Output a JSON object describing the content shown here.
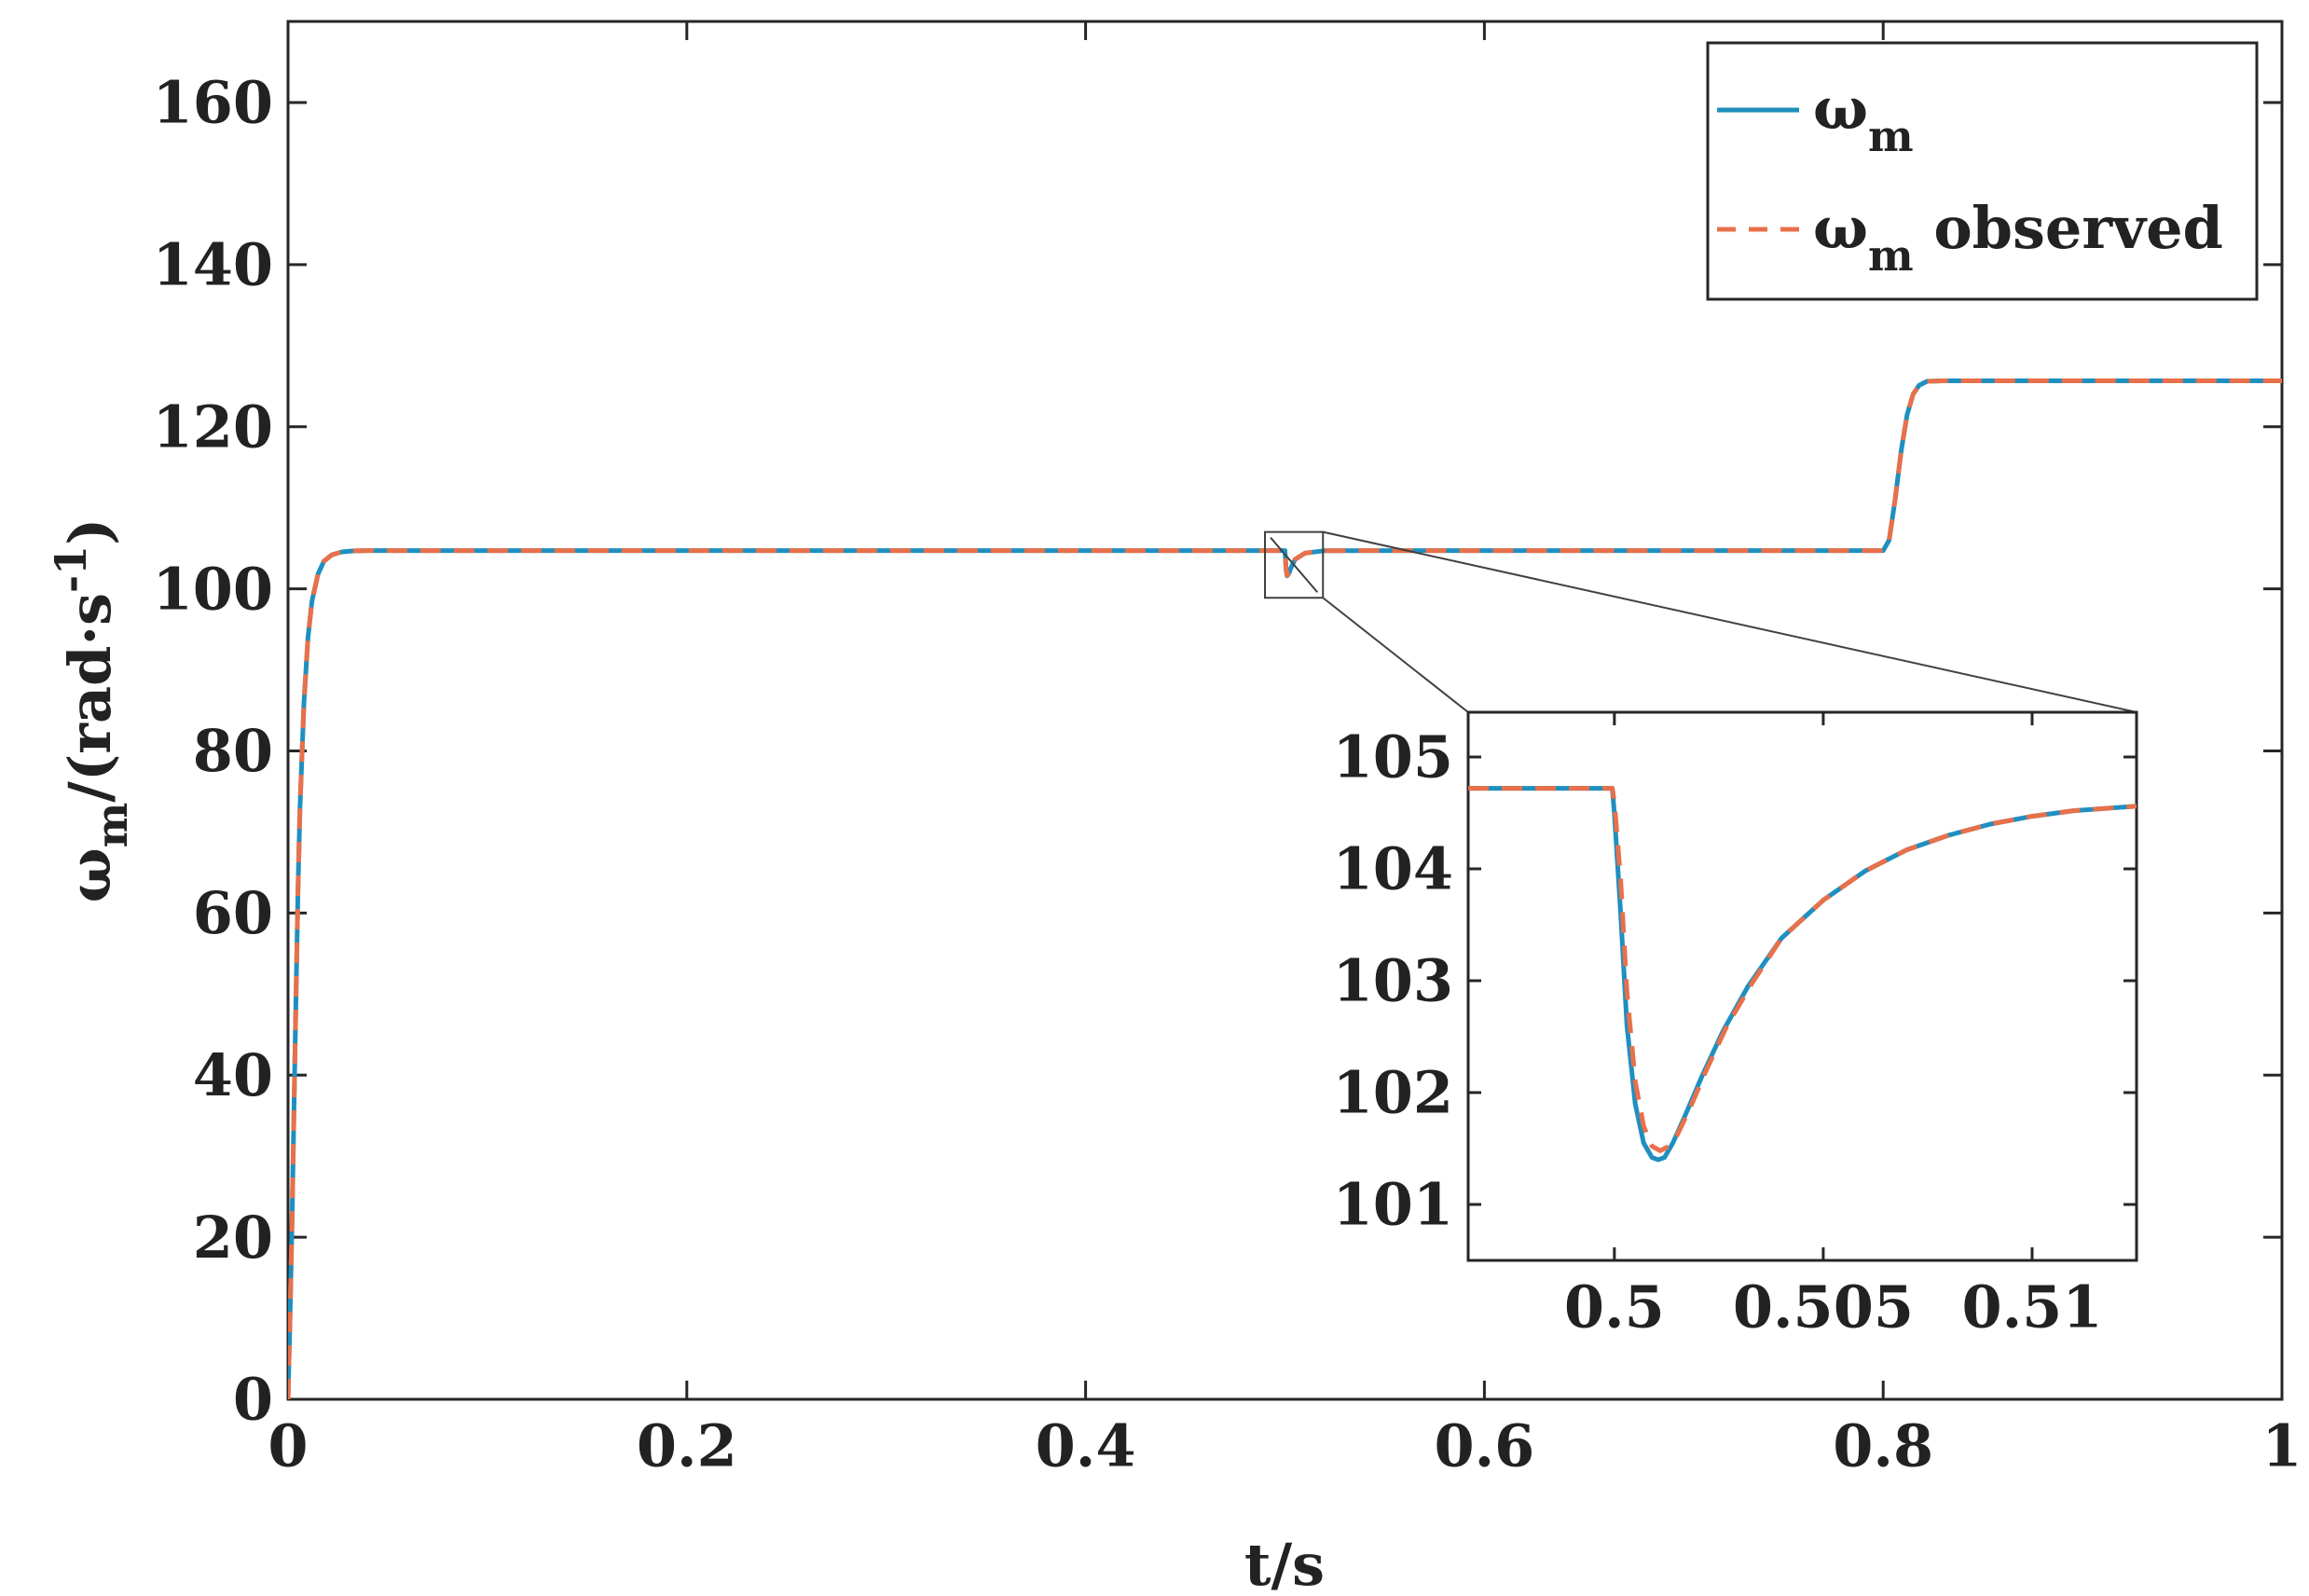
{
  "chart_data": [
    {
      "type": "line",
      "title": "",
      "xlabel": "t/s",
      "ylabel": {
        "symbol": "ω",
        "sub": "m",
        "unit_main": "/(rad·s",
        "unit_sup": "-1",
        "unit_close": ")"
      },
      "xlim": [
        0,
        1
      ],
      "ylim": [
        0,
        170
      ],
      "xticks": [
        0,
        0.2,
        0.4,
        0.6,
        0.8,
        1
      ],
      "xtick_labels": [
        "0",
        "0.2",
        "0.4",
        "0.6",
        "0.8",
        "1"
      ],
      "yticks": [
        0,
        20,
        40,
        60,
        80,
        100,
        120,
        140,
        160
      ],
      "ytick_labels": [
        "0",
        "20",
        "40",
        "60",
        "80",
        "100",
        "120",
        "140",
        "160"
      ],
      "grid": false,
      "legend": {
        "placement": "top-right"
      },
      "series": [
        {
          "name": {
            "symbol": "ω",
            "sub": "m",
            "suffix": ""
          },
          "color": "#1f8fbf",
          "style": "solid",
          "x": [
            0,
            0.001,
            0.002,
            0.003,
            0.004,
            0.005,
            0.006,
            0.008,
            0.01,
            0.012,
            0.015,
            0.018,
            0.022,
            0.027,
            0.033,
            0.04,
            0.05,
            0.1,
            0.2,
            0.3,
            0.4,
            0.499,
            0.5,
            0.5005,
            0.501,
            0.502,
            0.503,
            0.505,
            0.51,
            0.52,
            0.6,
            0.7,
            0.799,
            0.8,
            0.803,
            0.806,
            0.809,
            0.812,
            0.815,
            0.818,
            0.822,
            0.83,
            0.85,
            0.9,
            1.0
          ],
          "y": [
            0,
            10,
            22,
            36,
            50,
            63,
            73,
            86,
            94,
            98.5,
            101.8,
            103.4,
            104.2,
            104.55,
            104.68,
            104.72,
            104.72,
            104.72,
            104.72,
            104.72,
            104.72,
            104.72,
            104.72,
            102.5,
            101.6,
            101.9,
            102.6,
            103.6,
            104.4,
            104.7,
            104.72,
            104.72,
            104.72,
            104.72,
            106,
            111,
            117,
            121.5,
            124,
            125.1,
            125.6,
            125.66,
            125.66,
            125.66,
            125.66
          ]
        },
        {
          "name": {
            "symbol": "ω",
            "sub": "m",
            "suffix": " observed"
          },
          "color": "#e8704a",
          "style": "dashed",
          "x": [
            0,
            0.001,
            0.002,
            0.003,
            0.004,
            0.005,
            0.006,
            0.008,
            0.01,
            0.012,
            0.015,
            0.018,
            0.022,
            0.027,
            0.033,
            0.04,
            0.05,
            0.1,
            0.2,
            0.3,
            0.4,
            0.499,
            0.5,
            0.5005,
            0.501,
            0.502,
            0.503,
            0.505,
            0.51,
            0.52,
            0.6,
            0.7,
            0.799,
            0.8,
            0.803,
            0.806,
            0.809,
            0.812,
            0.815,
            0.818,
            0.822,
            0.83,
            0.85,
            0.9,
            1.0
          ],
          "y": [
            0,
            10,
            22,
            36,
            50,
            63,
            73,
            86,
            94,
            98.5,
            101.8,
            103.4,
            104.2,
            104.55,
            104.68,
            104.72,
            104.72,
            104.72,
            104.72,
            104.72,
            104.72,
            104.72,
            104.72,
            102.6,
            101.65,
            101.95,
            102.65,
            103.62,
            104.4,
            104.7,
            104.72,
            104.72,
            104.72,
            104.72,
            106,
            111,
            117,
            121.5,
            124,
            125.1,
            125.6,
            125.66,
            125.66,
            125.66,
            125.66
          ]
        }
      ]
    },
    {
      "type": "line",
      "title": "",
      "xlabel": "",
      "ylabel": "",
      "xlim": [
        0.4965,
        0.5125
      ],
      "ylim": [
        100.5,
        105.4
      ],
      "xticks": [
        0.5,
        0.505,
        0.51
      ],
      "xtick_labels": [
        "0.5",
        "0.505",
        "0.51"
      ],
      "yticks": [
        101,
        102,
        103,
        104,
        105
      ],
      "ytick_labels": [
        "101",
        "102",
        "103",
        "104",
        "105"
      ],
      "grid": false,
      "series": [
        {
          "name": "",
          "color": "#1f8fbf",
          "style": "solid",
          "x": [
            0.4965,
            0.49995,
            0.5,
            0.50015,
            0.5003,
            0.5005,
            0.5007,
            0.5009,
            0.50105,
            0.5012,
            0.5014,
            0.5017,
            0.5021,
            0.5026,
            0.5032,
            0.504,
            0.505,
            0.506,
            0.507,
            0.508,
            0.509,
            0.51,
            0.511,
            0.5125
          ],
          "y": [
            104.72,
            104.72,
            104.5,
            103.6,
            102.6,
            101.9,
            101.55,
            101.42,
            101.4,
            101.42,
            101.55,
            101.8,
            102.15,
            102.55,
            102.95,
            103.38,
            103.72,
            103.98,
            104.17,
            104.3,
            104.4,
            104.47,
            104.52,
            104.56
          ]
        },
        {
          "name": "",
          "color": "#e8704a",
          "style": "dashed",
          "x": [
            0.4965,
            0.49995,
            0.5,
            0.50015,
            0.5003,
            0.5005,
            0.5007,
            0.5009,
            0.5011,
            0.5013,
            0.5015,
            0.5018,
            0.5022,
            0.5027,
            0.5033,
            0.504,
            0.505,
            0.506,
            0.507,
            0.508,
            0.509,
            0.51,
            0.511,
            0.5125
          ],
          "y": [
            104.72,
            104.72,
            104.6,
            103.9,
            102.9,
            102.1,
            101.7,
            101.52,
            101.48,
            101.52,
            101.62,
            101.85,
            102.2,
            102.6,
            102.98,
            103.38,
            103.72,
            103.98,
            104.17,
            104.3,
            104.4,
            104.47,
            104.52,
            104.56
          ]
        }
      ]
    }
  ]
}
